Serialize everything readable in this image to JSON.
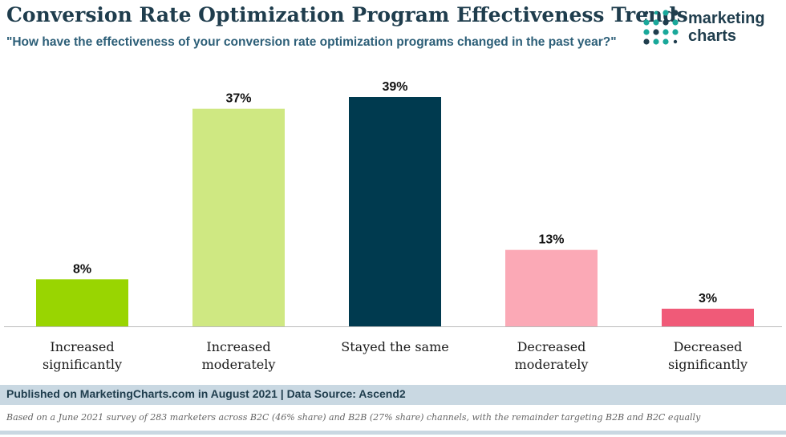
{
  "chart_data": {
    "type": "bar",
    "title": "Conversion Rate Optimization Program Effectiveness Trends",
    "subtitle": "\"How have the effectiveness of your conversion rate optimization programs changed in the past year?\"",
    "categories": [
      [
        "Increased",
        "significantly"
      ],
      [
        "Increased",
        "moderately"
      ],
      [
        "Stayed the same"
      ],
      [
        "Decreased",
        "moderately"
      ],
      [
        "Decreased",
        "significantly"
      ]
    ],
    "values": [
      8,
      37,
      39,
      13,
      3
    ],
    "value_labels": [
      "8%",
      "37%",
      "39%",
      "13%",
      "3%"
    ],
    "colors": [
      "#99d501",
      "#cfe882",
      "#003a4f",
      "#fba9b6",
      "#f05a78"
    ],
    "unit": "%",
    "ylim": [
      0,
      39
    ],
    "grid": false,
    "legend": "none"
  },
  "logo": {
    "line1": "marketing",
    "line2": "charts",
    "dot_color_light": "#1aa89a",
    "dot_color_dark": "#1f3d4d"
  },
  "footer": {
    "published": "Published on MarketingCharts.com in August 2021 | Data Source: Ascend2",
    "note": "Based on a June 2021 survey of 283 marketers across B2C (46% share) and B2B (27% share) channels, with the remainder targeting B2B and B2C equally"
  }
}
